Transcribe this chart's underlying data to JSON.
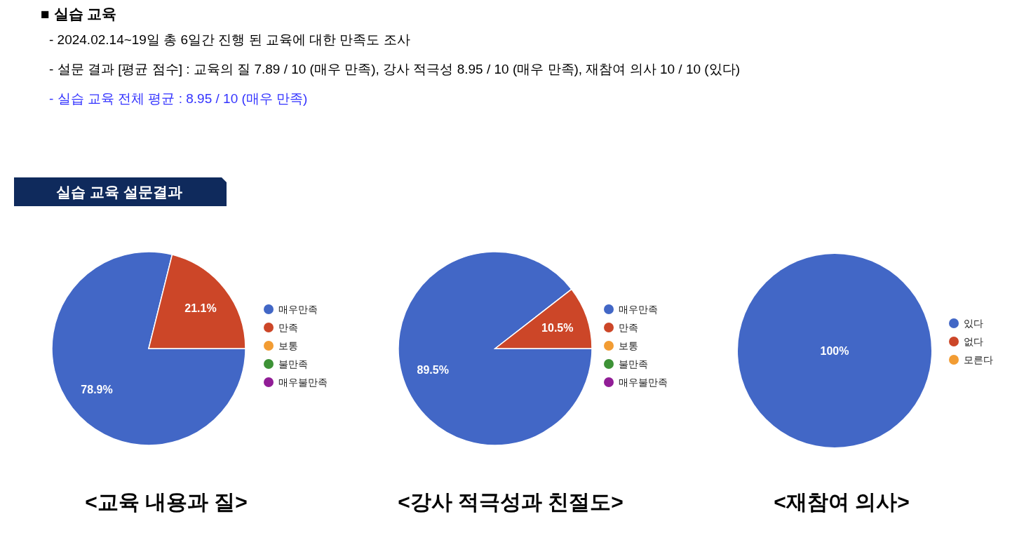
{
  "chart_data": [
    {
      "type": "other",
      "title": "■ 실습 교육",
      "annotations": [
        "- 2024.02.14~19일 총 6일간 진행 된 교육에 대한 만족도 조사",
        "- 설문 결과 [평균 점수] : 교육의 질 7.89 / 10 (매우 만족), 강사 적극성 8.95 / 10 (매우 만족), 재참여 의사 10 / 10 (있다)",
        "- 실습 교육 전체 평균 : 8.95 / 10 (매우 만족)",
        "실습 교육 설문결과"
      ],
      "colors": [
        "#000000",
        "#000000",
        "#3333ff",
        "#0f2a5c"
      ]
    },
    {
      "type": "pie",
      "title": "<교육 내용과 질>",
      "categories": [
        "매우만족",
        "만족",
        "보통",
        "불만족",
        "매우불만족"
      ],
      "values": [
        78.9,
        21.1,
        0,
        0,
        0
      ],
      "colors": [
        "#4267c6",
        "#cc4628",
        "#f29c33",
        "#3d9236",
        "#911d96"
      ],
      "value_labels": [
        "78.9%",
        "21.1%",
        null,
        null,
        null
      ],
      "legend": "right"
    },
    {
      "type": "pie",
      "title": "<강사 적극성과 친절도>",
      "categories": [
        "매우만족",
        "만족",
        "보통",
        "불만족",
        "매우불만족"
      ],
      "values": [
        89.5,
        10.5,
        0,
        0,
        0
      ],
      "colors": [
        "#4267c6",
        "#cc4628",
        "#f29c33",
        "#3d9236",
        "#911d96"
      ],
      "value_labels": [
        "89.5%",
        "10.5%",
        null,
        null,
        null
      ],
      "legend": "right"
    },
    {
      "type": "pie",
      "title": "<재참여 의사>",
      "categories": [
        "있다",
        "없다",
        "모른다"
      ],
      "values": [
        100,
        0,
        0
      ],
      "colors": [
        "#4267c6",
        "#cc4628",
        "#f29c33"
      ],
      "value_labels": [
        "100%",
        null,
        null
      ],
      "legend": "right"
    }
  ]
}
